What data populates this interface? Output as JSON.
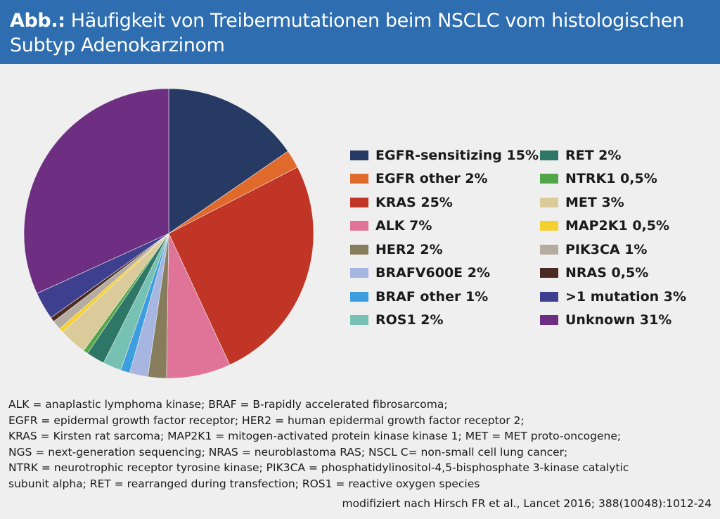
{
  "header": {
    "title_prefix": "Abb.:",
    "title_line1": " Häufigkeit von Treibermutationen beim NSCLC vom histologischen",
    "title_line2": "Subtyp Adenokarzinom"
  },
  "chart_data": {
    "type": "pie",
    "title": "Abb.: Häufigkeit von Treibermutationen beim NSCLC vom histologischen Subtyp Adenokarzinom",
    "unit": "%",
    "legend_placement": "right",
    "slices": [
      {
        "name": "EGFR-sensitizing",
        "value": 15,
        "label": "EGFR-sensitizing 15%",
        "color": "#263a63"
      },
      {
        "name": "EGFR other",
        "value": 2,
        "label": "EGFR other 2%",
        "color": "#e06a2c"
      },
      {
        "name": "KRAS",
        "value": 25,
        "label": "KRAS 25%",
        "color": "#c03526"
      },
      {
        "name": "ALK",
        "value": 7,
        "label": "ALK 7%",
        "color": "#df7498"
      },
      {
        "name": "HER2",
        "value": 2,
        "label": "HER2 2%",
        "color": "#877c5b"
      },
      {
        "name": "BRAFV600E",
        "value": 2,
        "label": "BRAFV600E 2%",
        "color": "#a7b6e1"
      },
      {
        "name": "BRAF other",
        "value": 1,
        "label": "BRAF other 1%",
        "color": "#3c9ede"
      },
      {
        "name": "ROS1",
        "value": 2,
        "label": "ROS1 2%",
        "color": "#76c1b4"
      },
      {
        "name": "RET",
        "value": 2,
        "label": "RET 2%",
        "color": "#2e7766"
      },
      {
        "name": "NTRK1",
        "value": 0.5,
        "label": "NTRK1 0,5%",
        "color": "#52a647"
      },
      {
        "name": "MET",
        "value": 3,
        "label": "MET 3%",
        "color": "#dccb9a"
      },
      {
        "name": "MAP2K1",
        "value": 0.5,
        "label": "MAP2K1 0,5%",
        "color": "#f6d02e"
      },
      {
        "name": "PIK3CA",
        "value": 1,
        "label": "PIK3CA 1%",
        "color": "#b5ab9e"
      },
      {
        "name": "NRAS",
        "value": 0.5,
        "label": "NRAS 0,5%",
        "color": "#4a2a22"
      },
      {
        "name": ">1 mutation",
        "value": 3,
        "label": ">1 mutation 3%",
        "color": "#3f3f8f"
      },
      {
        "name": "Unknown",
        "value": 31,
        "label": "Unknown 31%",
        "color": "#6e2f82"
      }
    ]
  },
  "footnote": {
    "lines": [
      "ALK = anaplastic lymphoma kinase; BRAF = B-rapidly accelerated fibrosarcoma;",
      "EGFR = epidermal growth factor receptor; HER2 = human epidermal growth factor receptor 2;",
      "KRAS = Kirsten rat sarcoma; MAP2K1 = mitogen-activated protein kinase kinase 1; MET = MET proto-oncogene;",
      "NGS = next-generation sequencing; NRAS = neuroblastoma RAS; NSCL C= non-small cell lung cancer;",
      "NTRK = neurotrophic receptor tyrosine kinase; PIK3CA = phosphatidylinositol-4,5-bisphosphate 3-kinase catalytic",
      "subunit alpha; RET = rearranged during transfection; ROS1 = reactive oxygen species"
    ]
  },
  "source": "modifiziert nach Hirsch FR et al., Lancet 2016; 388(10048):1012-24"
}
